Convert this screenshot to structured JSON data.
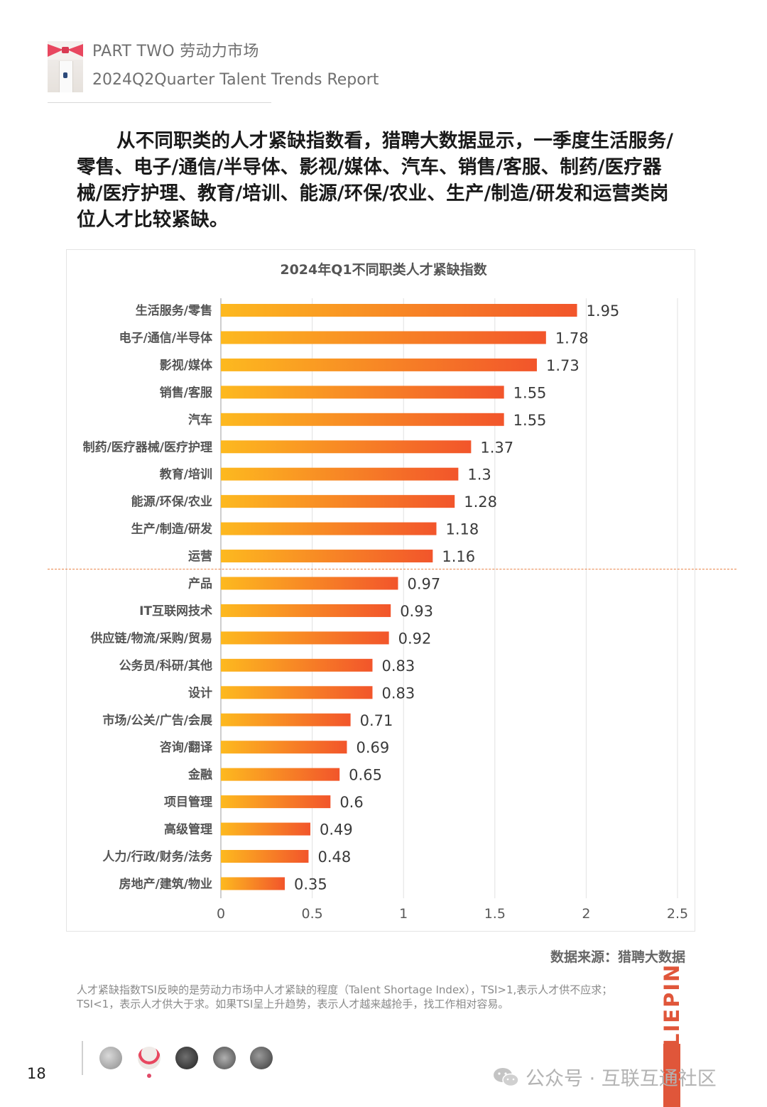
{
  "header": {
    "line1": "PART TWO 劳动力市场",
    "line2": "2024Q2Quarter Talent Trends Report"
  },
  "intro": "从不同职类的人才紧缺指数看，猎聘大数据显示，一季度生活服务/零售、电子/通信/半导体、影视/媒体、汽车、销售/客服、制药/医疗器械/医疗护理、教育/培训、能源/环保/农业、生产/制造/研发和运营类岗位人才比较紧缺。",
  "chart_data": {
    "type": "bar",
    "orientation": "horizontal",
    "title": "2024年Q1不同职类人才紧缺指数",
    "categories": [
      "生活服务/零售",
      "电子/通信/半导体",
      "影视/媒体",
      "销售/客服",
      "汽车",
      "制药/医疗器械/医疗护理",
      "教育/培训",
      "能源/环保/农业",
      "生产/制造/研发",
      "运营",
      "产品",
      "IT互联网技术",
      "供应链/物流/采购/贸易",
      "公务员/科研/其他",
      "设计",
      "市场/公关/广告/会展",
      "咨询/翻译",
      "金融",
      "项目管理",
      "高级管理",
      "人力/行政/财务/法务",
      "房地产/建筑/物业"
    ],
    "values": [
      1.95,
      1.78,
      1.73,
      1.55,
      1.55,
      1.37,
      1.3,
      1.28,
      1.18,
      1.16,
      0.97,
      0.93,
      0.92,
      0.83,
      0.83,
      0.71,
      0.69,
      0.65,
      0.6,
      0.49,
      0.48,
      0.35
    ],
    "xlim": [
      0,
      2.5
    ],
    "xticks": [
      "0",
      "0.5",
      "1",
      "1.5",
      "2",
      "2.5"
    ],
    "grid": true,
    "bar_gradient": [
      "#fdb91f",
      "#f2552b"
    ],
    "threshold_line": 1
  },
  "source": "数据来源：猎聘大数据",
  "footnote": "人才紧缺指数TSI反映的是劳动力市场中人才紧缺的程度（Talent Shortage Index），TSI>1,表示人才供不应求；TSI<1，表示人才供大于求。如果TSI呈上升趋势，表示人才越来越抢手，找工作相对容易。",
  "footer": {
    "page_number": "18",
    "brand": "LIEPIN",
    "watermark": "公众号 · 互联互通社区"
  },
  "colors": {
    "accent": "#e0563a",
    "dashed_line": "#e9844a"
  }
}
